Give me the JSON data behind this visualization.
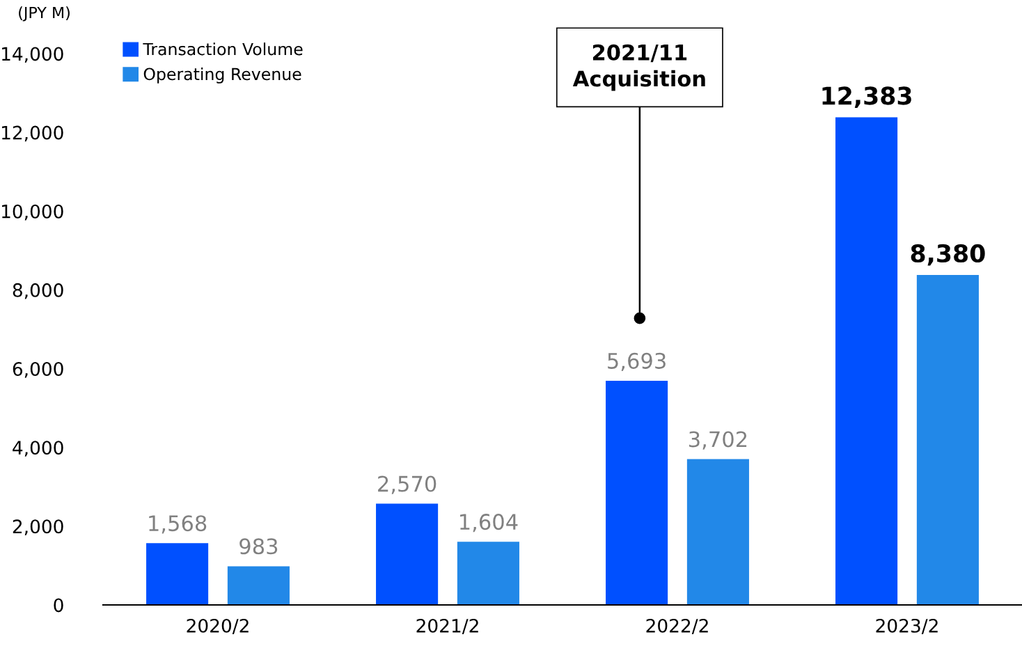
{
  "chart_data": {
    "type": "bar",
    "ylabel": "(JPY M)",
    "categories": [
      "2020/2",
      "2021/2",
      "2022/2",
      "2023/2"
    ],
    "series": [
      {
        "name": "Transaction Volume",
        "color": "#0050ff",
        "values": [
          1568,
          2570,
          5693,
          12383
        ],
        "value_labels": [
          "1,568",
          "2,570",
          "5,693",
          "12,383"
        ]
      },
      {
        "name": "Operating Revenue",
        "color": "#2288e8",
        "values": [
          983,
          1604,
          3702,
          8380
        ],
        "value_labels": [
          "983",
          "1,604",
          "3,702",
          "8,380"
        ]
      }
    ],
    "ylim": [
      0,
      14000
    ],
    "yticks": [
      0,
      {
        "value": 2000,
        "label": "2,000"
      },
      {
        "value": 4000,
        "label": "4,000"
      },
      {
        "value": 6000,
        "label": "6,000"
      },
      {
        "value": 8000,
        "label": "8,000"
      },
      {
        "value": 10000,
        "label": "10,000"
      },
      {
        "value": 12000,
        "label": "12,000"
      },
      {
        "value": 14000,
        "label": "14,000"
      }
    ],
    "legend": "top left",
    "annotations": [
      "2021/11\nAcquisition"
    ]
  }
}
